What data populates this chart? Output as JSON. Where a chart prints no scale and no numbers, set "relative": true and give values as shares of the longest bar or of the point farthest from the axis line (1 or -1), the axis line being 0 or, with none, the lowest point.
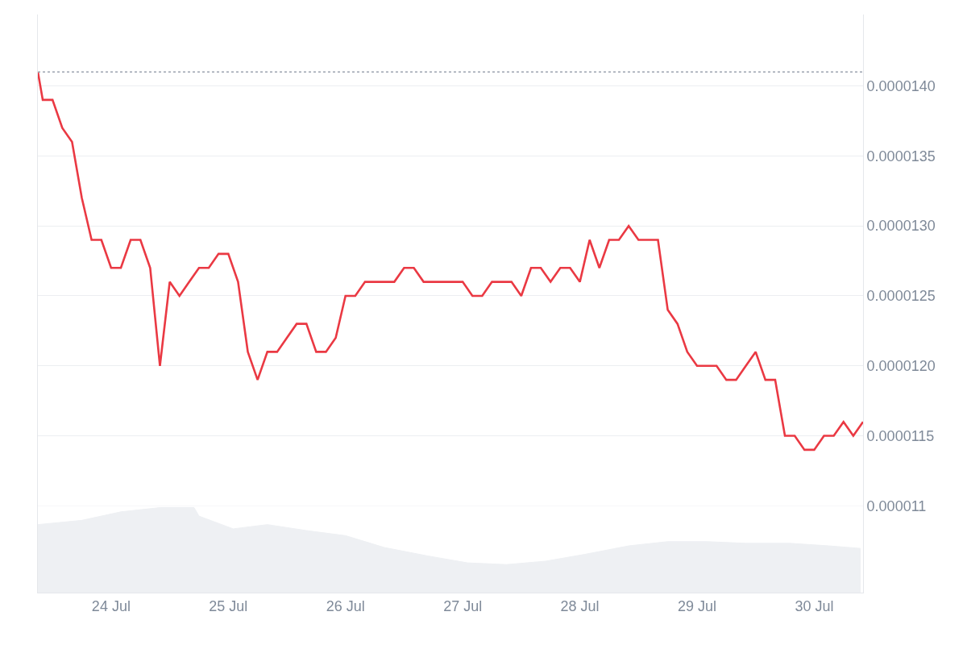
{
  "chart_data": [
    {
      "type": "line",
      "color": "#ea3943",
      "x": [
        "--07-23T09:00",
        "--07-23T10:00",
        "--07-23T12:00",
        "--07-23T14:00",
        "--07-23T16:00",
        "--07-23T18:00",
        "--07-23T20:00",
        "--07-23T22:00",
        "--07-24T00:00",
        "--07-24T02:00",
        "--07-24T04:00",
        "--07-24T06:00",
        "--07-24T08:00",
        "--07-24T10:00",
        "--07-24T12:00",
        "--07-24T14:00",
        "--07-24T16:00",
        "--07-24T18:00",
        "--07-24T20:00",
        "--07-24T22:00",
        "--07-25T00:00",
        "--07-25T02:00",
        "--07-25T04:00",
        "--07-25T06:00",
        "--07-25T08:00",
        "--07-25T10:00",
        "--07-25T12:00",
        "--07-25T14:00",
        "--07-25T16:00",
        "--07-25T18:00",
        "--07-25T20:00",
        "--07-25T22:00",
        "--07-26T00:00",
        "--07-26T02:00",
        "--07-26T04:00",
        "--07-26T06:00",
        "--07-26T08:00",
        "--07-26T10:00",
        "--07-26T12:00",
        "--07-26T14:00",
        "--07-26T16:00",
        "--07-26T18:00",
        "--07-26T20:00",
        "--07-26T22:00",
        "--07-27T00:00",
        "--07-27T02:00",
        "--07-27T04:00",
        "--07-27T06:00",
        "--07-27T08:00",
        "--07-27T10:00",
        "--07-27T12:00",
        "--07-27T14:00",
        "--07-27T16:00",
        "--07-27T18:00",
        "--07-27T20:00",
        "--07-27T22:00",
        "--07-28T00:00",
        "--07-28T02:00",
        "--07-28T04:00",
        "--07-28T06:00",
        "--07-28T08:00",
        "--07-28T10:00",
        "--07-28T12:00",
        "--07-28T14:00",
        "--07-28T16:00",
        "--07-28T18:00",
        "--07-28T20:00",
        "--07-28T22:00",
        "--07-29T00:00",
        "--07-29T02:00",
        "--07-29T04:00",
        "--07-29T06:00",
        "--07-29T08:00",
        "--07-29T10:00",
        "--07-29T12:00",
        "--07-29T14:00",
        "--07-29T16:00",
        "--07-29T18:00",
        "--07-29T20:00",
        "--07-29T22:00",
        "--07-30T00:00",
        "--07-30T02:00",
        "--07-30T04:00",
        "--07-30T06:00",
        "--07-30T08:00",
        "--07-30T10:00"
      ],
      "values": [
        1.41e-05,
        1.39e-05,
        1.39e-05,
        1.37e-05,
        1.36e-05,
        1.32e-05,
        1.29e-05,
        1.29e-05,
        1.27e-05,
        1.27e-05,
        1.29e-05,
        1.29e-05,
        1.27e-05,
        1.2e-05,
        1.26e-05,
        1.25e-05,
        1.26e-05,
        1.27e-05,
        1.27e-05,
        1.28e-05,
        1.28e-05,
        1.26e-05,
        1.21e-05,
        1.19e-05,
        1.21e-05,
        1.21e-05,
        1.22e-05,
        1.23e-05,
        1.23e-05,
        1.21e-05,
        1.21e-05,
        1.22e-05,
        1.25e-05,
        1.25e-05,
        1.26e-05,
        1.26e-05,
        1.26e-05,
        1.26e-05,
        1.27e-05,
        1.27e-05,
        1.26e-05,
        1.26e-05,
        1.26e-05,
        1.26e-05,
        1.26e-05,
        1.25e-05,
        1.25e-05,
        1.26e-05,
        1.26e-05,
        1.26e-05,
        1.25e-05,
        1.27e-05,
        1.27e-05,
        1.26e-05,
        1.27e-05,
        1.27e-05,
        1.26e-05,
        1.29e-05,
        1.27e-05,
        1.29e-05,
        1.29e-05,
        1.3e-05,
        1.29e-05,
        1.29e-05,
        1.29e-05,
        1.24e-05,
        1.23e-05,
        1.21e-05,
        1.2e-05,
        1.2e-05,
        1.2e-05,
        1.19e-05,
        1.19e-05,
        1.2e-05,
        1.21e-05,
        1.19e-05,
        1.19e-05,
        1.15e-05,
        1.15e-05,
        1.14e-05,
        1.14e-05,
        1.15e-05,
        1.15e-05,
        1.16e-05,
        1.15e-05,
        1.16e-05
      ],
      "xlim": [
        "--07-23T09:00",
        "--07-30T10:00"
      ],
      "xticks": [
        {
          "value": "--07-24",
          "label": "24 Jul"
        },
        {
          "value": "--07-25",
          "label": "25 Jul"
        },
        {
          "value": "--07-26",
          "label": "26 Jul"
        },
        {
          "value": "--07-27",
          "label": "27 Jul"
        },
        {
          "value": "--07-28",
          "label": "28 Jul"
        },
        {
          "value": "--07-29",
          "label": "29 Jul"
        },
        {
          "value": "--07-30",
          "label": "30 Jul"
        }
      ],
      "ylim": [
        1.038e-05,
        1.451e-05
      ],
      "yticks": [
        {
          "value": 1.1e-05,
          "label": "0.000011"
        },
        {
          "value": 1.15e-05,
          "label": "0.0000115"
        },
        {
          "value": 1.2e-05,
          "label": "0.0000120"
        },
        {
          "value": 1.25e-05,
          "label": "0.0000125"
        },
        {
          "value": 1.3e-05,
          "label": "0.0000130"
        },
        {
          "value": 1.35e-05,
          "label": "0.0000135"
        },
        {
          "value": 1.4e-05,
          "label": "0.0000140"
        }
      ],
      "ref_lines": [
        {
          "axis": "y",
          "value": 1.41e-05,
          "color": "#9ca3af",
          "line_style": "dotted"
        }
      ],
      "grid": "y",
      "legend": false,
      "marker": "none",
      "line_style": "solid"
    },
    {
      "type": "area",
      "color": "#eef0f3",
      "relative": true,
      "tick_labels": false,
      "x": [
        "--07-23T09:00",
        "--07-23T18:00",
        "--07-24T02:00",
        "--07-24T10:00",
        "--07-24T17:00",
        "--07-24T18:00",
        "--07-25T01:00",
        "--07-25T08:00",
        "--07-25T16:00",
        "--07-26T00:00",
        "--07-26T08:00",
        "--07-26T17:00",
        "--07-27T01:00",
        "--07-27T09:00",
        "--07-27T17:00",
        "--07-28T01:00",
        "--07-28T10:00",
        "--07-28T18:00",
        "--07-29T02:00",
        "--07-29T10:00",
        "--07-29T19:00",
        "--07-30T03:00",
        "--07-30T09:30"
      ],
      "values": [
        0.8,
        0.85,
        0.95,
        1.0,
        1.0,
        0.9,
        0.75,
        0.8,
        0.73,
        0.67,
        0.53,
        0.43,
        0.35,
        0.33,
        0.37,
        0.45,
        0.55,
        0.6,
        0.6,
        0.58,
        0.58,
        0.55,
        0.52
      ],
      "xlim": [
        "--07-23T09:00",
        "--07-30T10:00"
      ]
    }
  ]
}
